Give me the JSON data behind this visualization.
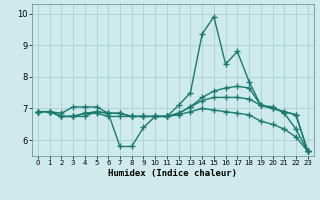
{
  "xlabel": "Humidex (Indice chaleur)",
  "background_color": "#ceeaea",
  "grid_color": "#aed4d4",
  "line_color": "#1a7a6e",
  "xlim": [
    -0.5,
    23.5
  ],
  "ylim": [
    5.5,
    10.3
  ],
  "xticks": [
    0,
    1,
    2,
    3,
    4,
    5,
    6,
    7,
    8,
    9,
    10,
    11,
    12,
    13,
    14,
    15,
    16,
    17,
    18,
    19,
    20,
    21,
    22,
    23
  ],
  "yticks": [
    6,
    7,
    8,
    9,
    10
  ],
  "lines": [
    {
      "x": [
        0,
        1,
        2,
        3,
        4,
        5,
        6,
        7,
        8,
        9,
        10,
        11,
        12,
        13,
        14,
        15,
        16,
        17,
        18,
        19,
        20,
        21,
        22,
        23
      ],
      "y": [
        6.9,
        6.9,
        6.85,
        7.05,
        7.05,
        7.05,
        6.85,
        5.8,
        5.8,
        6.4,
        6.75,
        6.75,
        7.1,
        7.5,
        9.35,
        9.9,
        8.4,
        8.8,
        7.85,
        7.1,
        7.05,
        6.85,
        6.35,
        5.65
      ]
    },
    {
      "x": [
        0,
        1,
        2,
        3,
        4,
        5,
        6,
        7,
        8,
        9,
        10,
        11,
        12,
        13,
        14,
        15,
        16,
        17,
        18,
        19,
        20,
        21,
        22,
        23
      ],
      "y": [
        6.9,
        6.9,
        6.75,
        6.75,
        6.75,
        6.9,
        6.85,
        6.85,
        6.75,
        6.75,
        6.75,
        6.75,
        6.85,
        7.05,
        7.35,
        7.55,
        7.65,
        7.7,
        7.65,
        7.1,
        7.0,
        6.9,
        6.8,
        5.65
      ]
    },
    {
      "x": [
        0,
        1,
        2,
        3,
        4,
        5,
        6,
        7,
        8,
        9,
        10,
        11,
        12,
        13,
        14,
        15,
        16,
        17,
        18,
        19,
        20,
        21,
        22,
        23
      ],
      "y": [
        6.9,
        6.9,
        6.75,
        6.75,
        6.85,
        6.9,
        6.85,
        6.85,
        6.75,
        6.75,
        6.75,
        6.75,
        6.85,
        7.05,
        7.25,
        7.35,
        7.35,
        7.35,
        7.3,
        7.1,
        7.0,
        6.9,
        6.8,
        5.65
      ]
    },
    {
      "x": [
        0,
        1,
        2,
        3,
        4,
        5,
        6,
        7,
        8,
        9,
        10,
        11,
        12,
        13,
        14,
        15,
        16,
        17,
        18,
        19,
        20,
        21,
        22,
        23
      ],
      "y": [
        6.9,
        6.9,
        6.75,
        6.75,
        6.85,
        6.85,
        6.75,
        6.75,
        6.75,
        6.75,
        6.75,
        6.75,
        6.8,
        6.9,
        7.0,
        6.95,
        6.9,
        6.85,
        6.8,
        6.6,
        6.5,
        6.35,
        6.1,
        5.65
      ]
    }
  ],
  "marker_size": 4,
  "line_width": 1.0
}
